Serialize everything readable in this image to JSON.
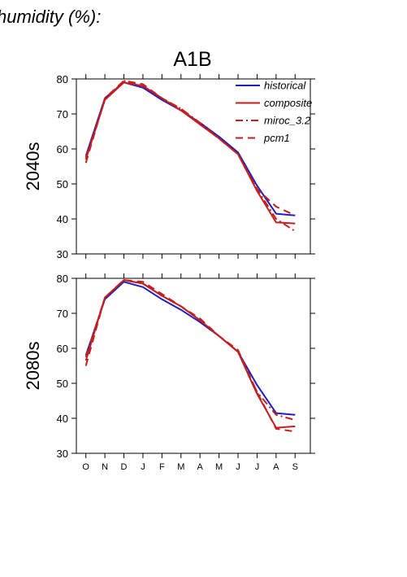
{
  "heading": "humidity (%):",
  "colors": {
    "historical": "#1f1fbf",
    "model": "#c41e1e"
  },
  "chart_data": {
    "type": "line",
    "title": "A1B",
    "x": [
      "O",
      "N",
      "D",
      "J",
      "F",
      "M",
      "A",
      "M",
      "J",
      "J",
      "A",
      "S"
    ],
    "ylim": [
      30,
      80
    ],
    "yticks": [
      30,
      40,
      50,
      60,
      70,
      80
    ],
    "grid": false,
    "legend": {
      "placement": "top-right",
      "entries": [
        {
          "name": "historical",
          "style": "solid",
          "color": "#1f1fbf"
        },
        {
          "name": "composite",
          "style": "solid",
          "color": "#c41e1e"
        },
        {
          "name": "miroc_3.2",
          "style": "dashdot",
          "color": "#c41e1e"
        },
        {
          "name": "pcm1",
          "style": "dash",
          "color": "#c41e1e"
        }
      ]
    },
    "panels": [
      {
        "label": "2040s",
        "series": [
          {
            "name": "historical",
            "values": [
              58,
              74.5,
              79,
              77.5,
              74,
              71,
              67.5,
              63.5,
              59,
              49.5,
              41.5,
              41
            ]
          },
          {
            "name": "composite",
            "values": [
              57,
              74,
              79,
              78,
              74.5,
              71,
              67,
              63,
              58.5,
              48,
              39,
              38.7
            ]
          },
          {
            "name": "miroc_3.2",
            "values": [
              57.5,
              74,
              79.5,
              78,
              74.5,
              71.5,
              67.5,
              63,
              58.5,
              48.5,
              40,
              36.5
            ]
          },
          {
            "name": "pcm1",
            "values": [
              56,
              74.5,
              79.5,
              78.5,
              74.5,
              71.5,
              67,
              63,
              58.5,
              48.5,
              43.5,
              41
            ]
          }
        ]
      },
      {
        "label": "2080s",
        "series": [
          {
            "name": "historical",
            "values": [
              58,
              74,
              79,
              77.5,
              74,
              71,
              67.5,
              63.5,
              59,
              49.5,
              41.5,
              41
            ]
          },
          {
            "name": "composite",
            "values": [
              56.5,
              74.5,
              79.5,
              78.5,
              75,
              72,
              68,
              63.5,
              59,
              47,
              37.3,
              37.7
            ]
          },
          {
            "name": "miroc_3.2",
            "values": [
              57.5,
              74.5,
              79.5,
              78.5,
              75,
              72,
              68,
              63.5,
              59,
              47.5,
              41,
              39.5
            ]
          },
          {
            "name": "pcm1",
            "values": [
              55,
              74.5,
              79.5,
              79,
              75.5,
              72,
              68.5,
              63.5,
              59.5,
              47.5,
              37,
              36.2
            ]
          }
        ]
      }
    ]
  }
}
